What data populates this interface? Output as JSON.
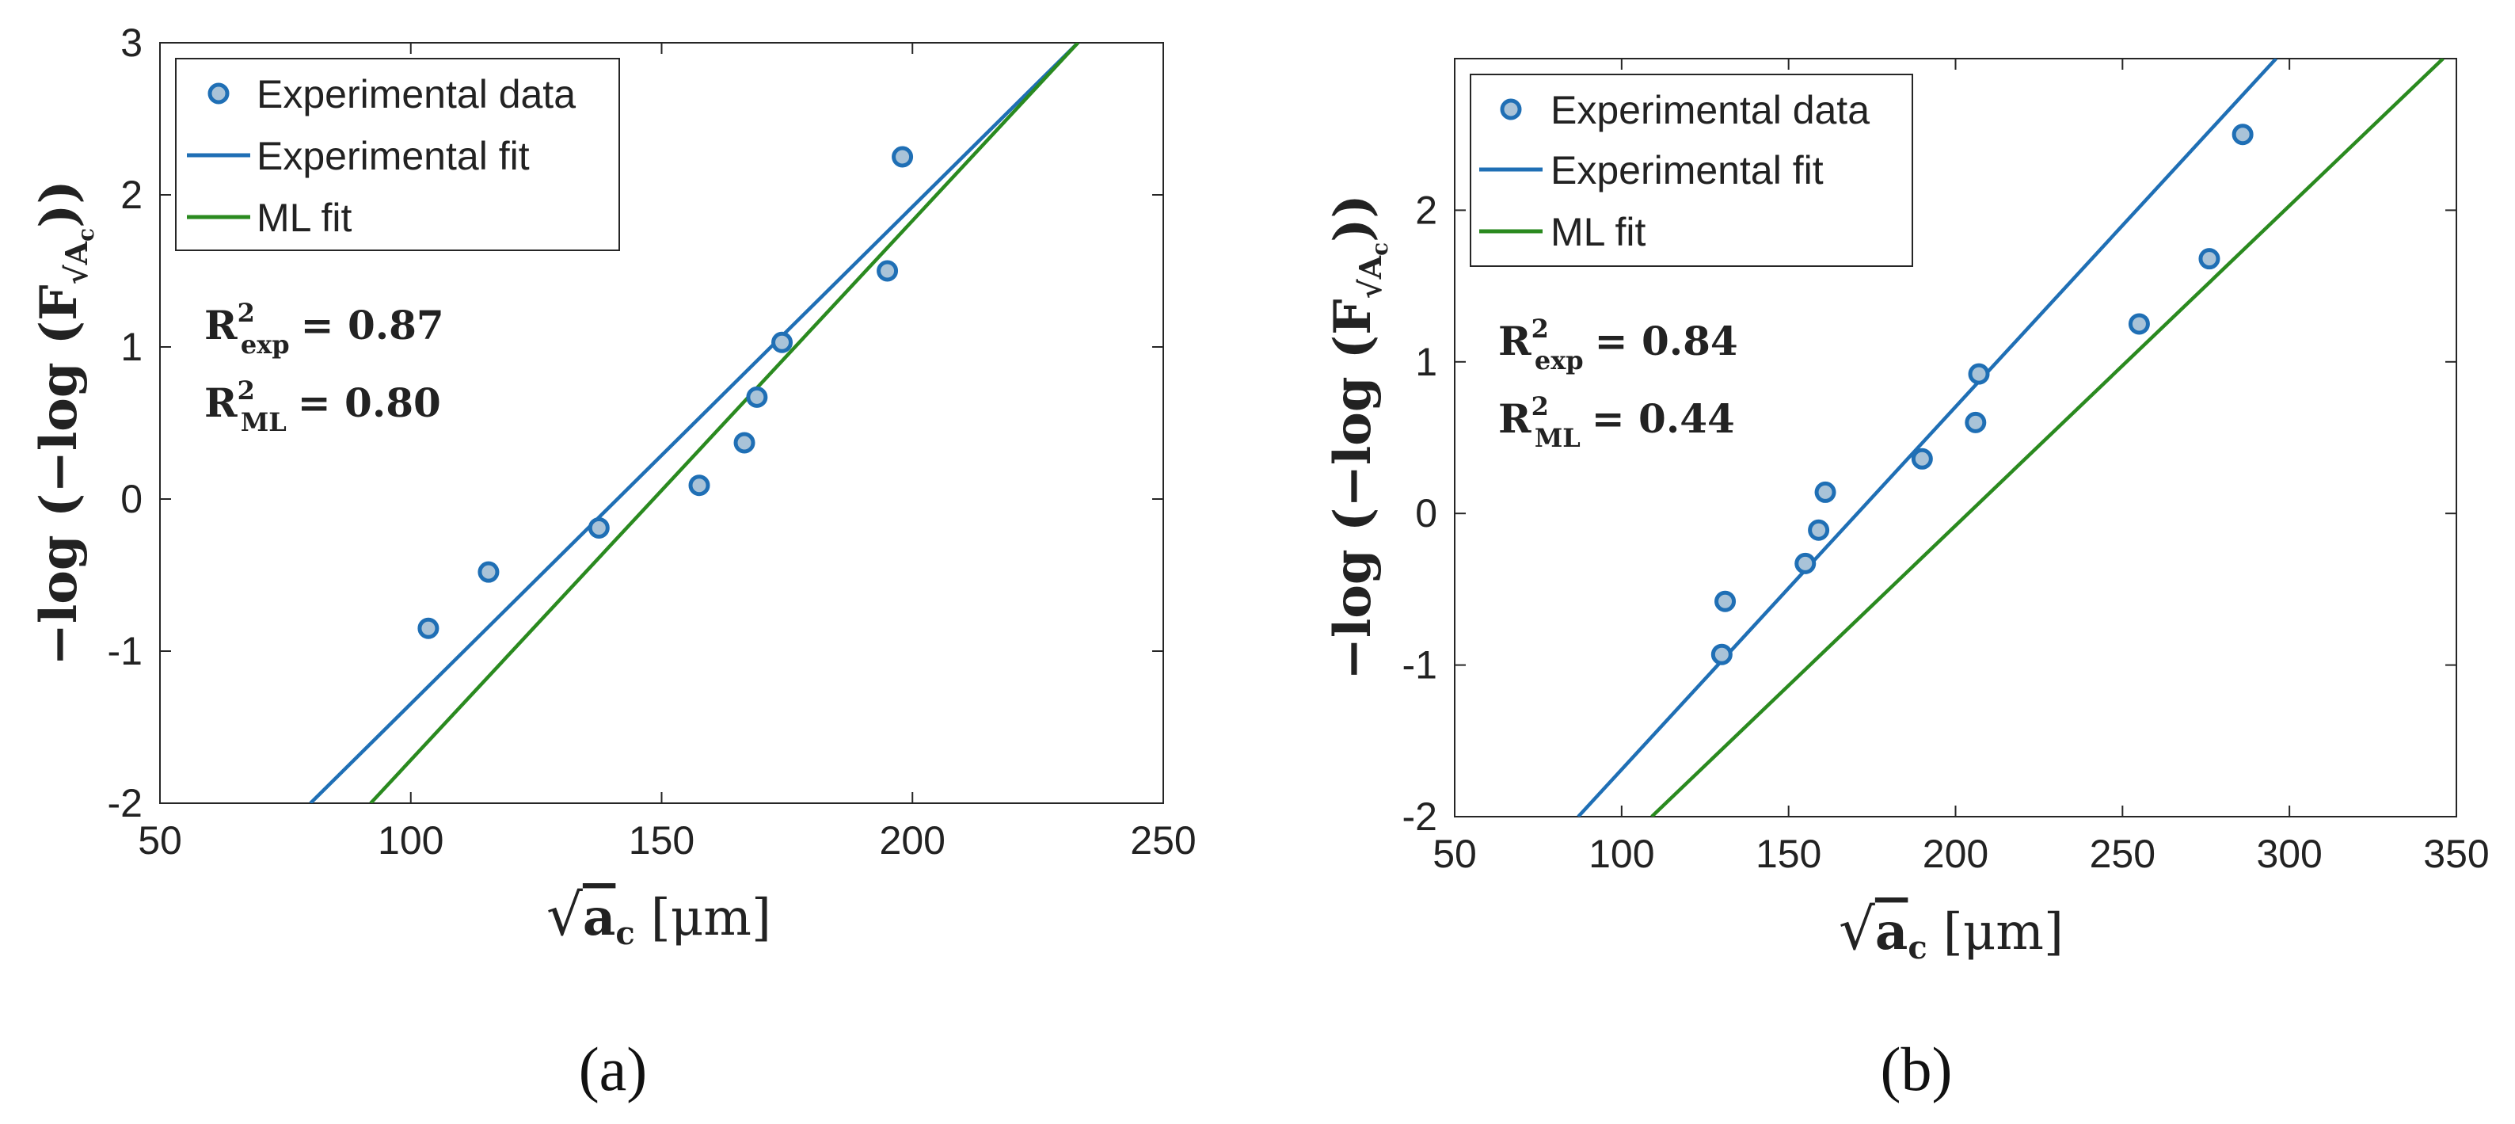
{
  "chart_data": [
    {
      "type": "scatter",
      "panel_label": "(a)",
      "xlabel": {
        "pre": "√",
        "main": "a",
        "sub": "c",
        "unit": "[μm]"
      },
      "ylabel": {
        "pre": "−log (−log (F",
        "sub": "√A",
        "subsub": "c",
        "post": "))"
      },
      "xlim": [
        50,
        250
      ],
      "ylim": [
        -2,
        3
      ],
      "xticks": [
        50,
        100,
        150,
        200,
        250
      ],
      "yticks": [
        -2,
        -1,
        0,
        1,
        2,
        3
      ],
      "xtick_labels": [
        "50",
        "100",
        "150",
        "200",
        "250"
      ],
      "ytick_labels": [
        "-2",
        "-1",
        "0",
        "1",
        "2",
        "3"
      ],
      "legend": {
        "position": "top-left",
        "entries": [
          "Experimental data",
          "Experimental fit",
          "ML fit"
        ]
      },
      "annotations": [
        {
          "label": "R",
          "sup": "2",
          "sub": "exp",
          "value": "= 0.87"
        },
        {
          "label": "R",
          "sup": "2",
          "sub": "ML",
          "value": "= 0.80"
        }
      ],
      "series": [
        {
          "name": "Experimental data",
          "kind": "points",
          "color": "#1f6fb5",
          "fill": "#a9c3d8",
          "x": [
            103.5,
            115.5,
            137.5,
            157.5,
            166.5,
            169,
            174,
            195,
            198
          ],
          "y": [
            -0.85,
            -0.48,
            -0.19,
            0.09,
            0.37,
            0.67,
            1.03,
            1.5,
            2.25
          ]
        },
        {
          "name": "Experimental fit",
          "kind": "line",
          "color": "#1f6fb5",
          "x": [
            80,
            233
          ],
          "y": [
            -2,
            3
          ]
        },
        {
          "name": "ML fit",
          "kind": "line",
          "color": "#2a8a1f",
          "x": [
            92,
            233
          ],
          "y": [
            -2,
            3
          ]
        }
      ]
    },
    {
      "type": "scatter",
      "panel_label": "(b)",
      "xlabel": {
        "pre": "√",
        "main": "a",
        "sub": "c",
        "unit": "[μm]"
      },
      "ylabel": {
        "pre": "−log (−log (F",
        "sub": "√A",
        "subsub": "c",
        "post": "))"
      },
      "xlim": [
        50,
        350
      ],
      "ylim": [
        -2,
        3
      ],
      "xticks": [
        50,
        100,
        150,
        200,
        250,
        300,
        350
      ],
      "yticks": [
        -2,
        -1,
        0,
        1,
        2
      ],
      "xtick_labels": [
        "50",
        "100",
        "150",
        "200",
        "250",
        "300",
        "350"
      ],
      "ytick_labels": [
        "-2",
        "-1",
        "0",
        "1",
        "2"
      ],
      "legend": {
        "position": "top-left",
        "entries": [
          "Experimental data",
          "Experimental fit",
          "ML fit"
        ]
      },
      "annotations": [
        {
          "label": "R",
          "sup": "2",
          "sub": "exp",
          "value": "= 0.84"
        },
        {
          "label": "R",
          "sup": "2",
          "sub": "ML",
          "value": "= 0.44"
        }
      ],
      "series": [
        {
          "name": "Experimental data",
          "kind": "points",
          "color": "#1f6fb5",
          "fill": "#a9c3d8",
          "x": [
            130,
            131,
            155,
            159,
            161,
            190,
            206,
            207,
            255,
            276,
            286
          ],
          "y": [
            -0.93,
            -0.58,
            -0.33,
            -0.11,
            0.14,
            0.36,
            0.6,
            0.92,
            1.25,
            1.68,
            2.5
          ]
        },
        {
          "name": "Experimental fit",
          "kind": "line",
          "color": "#1f6fb5",
          "x": [
            87,
            296
          ],
          "y": [
            -2,
            3
          ]
        },
        {
          "name": "ML fit",
          "kind": "line",
          "color": "#2a8a1f",
          "x": [
            109,
            346
          ],
          "y": [
            -2,
            3
          ]
        }
      ]
    }
  ]
}
